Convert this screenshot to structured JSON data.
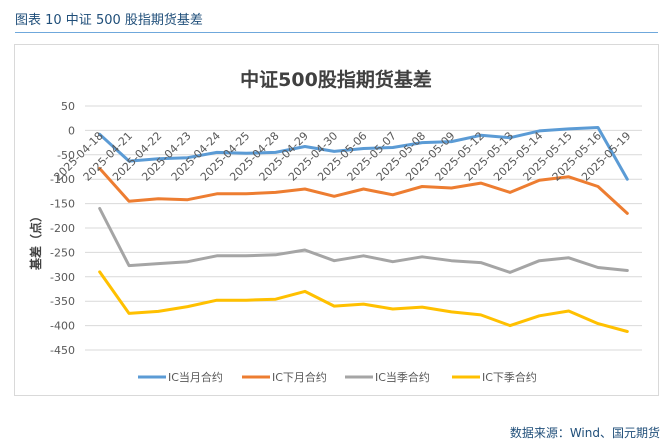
{
  "caption": "图表 10  中证 500 股指期货基差",
  "source_note": "数据来源：Wind、国元期货",
  "colors": {
    "caption": "#1F4E79",
    "rule": "#6FA8DC"
  },
  "chart_data": {
    "type": "line",
    "title": "中证500股指期货基差",
    "xlabel": "",
    "ylabel": "基差（点）",
    "ylim": [
      -450,
      50
    ],
    "yticks": [
      50,
      0,
      -50,
      -100,
      -150,
      -200,
      -250,
      -300,
      -350,
      -400,
      -450
    ],
    "grid": true,
    "legend_position": "bottom",
    "x": [
      "2025-04-18",
      "2025-04-21",
      "2025-04-22",
      "2025-04-23",
      "2025-04-24",
      "2025-04-25",
      "2025-04-28",
      "2025-04-29",
      "2025-04-30",
      "2025-05-06",
      "2025-05-07",
      "2025-05-08",
      "2025-05-09",
      "2025-05-12",
      "2025-05-13",
      "2025-05-14",
      "2025-05-15",
      "2025-05-16",
      "2025-05-19"
    ],
    "series": [
      {
        "name": "IC当月合约",
        "color": "#5B9BD5",
        "values": [
          -8,
          -63,
          -58,
          -56,
          -45,
          -47,
          -45,
          -33,
          -43,
          -37,
          -35,
          -25,
          -23,
          -10,
          -15,
          -1,
          3,
          6,
          -100
        ]
      },
      {
        "name": "IC下月合约",
        "color": "#ED7D31",
        "values": [
          -78,
          -145,
          -140,
          -142,
          -130,
          -130,
          -127,
          -120,
          -135,
          -120,
          -132,
          -115,
          -118,
          -108,
          -127,
          -102,
          -95,
          -115,
          -170
        ]
      },
      {
        "name": "IC当季合约",
        "color": "#A5A5A5",
        "values": [
          -160,
          -277,
          -273,
          -269,
          -257,
          -257,
          -255,
          -245,
          -267,
          -257,
          -269,
          -259,
          -267,
          -271,
          -291,
          -267,
          -261,
          -281,
          -287
        ]
      },
      {
        "name": "IC下季合约",
        "color": "#FFC000",
        "values": [
          -290,
          -375,
          -371,
          -361,
          -348,
          -348,
          -346,
          -330,
          -360,
          -356,
          -366,
          -362,
          -372,
          -378,
          -400,
          -380,
          -370,
          -396,
          -412
        ]
      }
    ]
  }
}
